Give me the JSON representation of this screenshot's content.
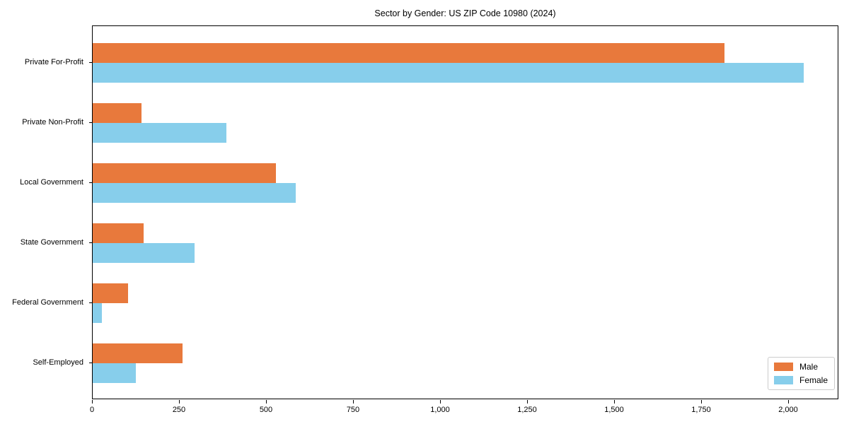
{
  "chart_data": {
    "type": "bar",
    "orientation": "horizontal",
    "title": "Sector by Gender: US ZIP Code 10980 (2024)",
    "categories": [
      "Private For-Profit",
      "Private Non-Profit",
      "Local Government",
      "State Government",
      "Federal Government",
      "Self-Employed"
    ],
    "series": [
      {
        "name": "Male",
        "color": "#E8793C",
        "values": [
          1815,
          140,
          526,
          146,
          102,
          259
        ]
      },
      {
        "name": "Female",
        "color": "#87CEEB",
        "values": [
          2043,
          384,
          584,
          293,
          27,
          125
        ]
      }
    ],
    "xlabel": "",
    "ylabel": "",
    "xlim": [
      0,
      2145
    ],
    "x_ticks": [
      0,
      250,
      500,
      750,
      1000,
      1250,
      1500,
      1750,
      2000
    ],
    "x_tick_labels": [
      "0",
      "250",
      "500",
      "750",
      "1,000",
      "1,250",
      "1,500",
      "1,750",
      "2,000"
    ],
    "grid": false,
    "legend": {
      "position": "lower right",
      "entries": [
        "Male",
        "Female"
      ]
    },
    "colors": {
      "background": "#FFFFFF",
      "spine": "#000000",
      "legend_border": "#CCCCCC",
      "text": "#000000"
    }
  }
}
